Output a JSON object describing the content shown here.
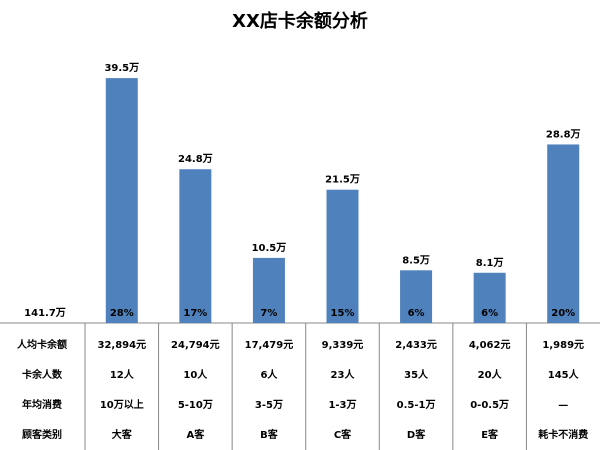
{
  "chart_data": {
    "type": "bar",
    "title": "XX店卡余额分析",
    "categories": [
      "大客",
      "A客",
      "B客",
      "C客",
      "D客",
      "E客",
      "耗卡不消费"
    ],
    "values": [
      39.5,
      24.8,
      10.5,
      21.5,
      8.5,
      8.1,
      28.8
    ],
    "value_labels": [
      "39.5万",
      "24.8万",
      "10.5万",
      "21.5万",
      "8.5万",
      "8.1万",
      "28.8万"
    ],
    "color": "#4f81bd",
    "shares": {
      "values": [
        28,
        17,
        7,
        15,
        6,
        6,
        20
      ],
      "value_labels": [
        "28%",
        "17%",
        "7%",
        "15%",
        "6%",
        "6%",
        "20%"
      ]
    },
    "total": {
      "value": 141.7,
      "label": "141.7万"
    },
    "table": {
      "rows": [
        {
          "label": "人均卡余额",
          "cells": [
            "32,894元",
            "24,794元",
            "17,479元",
            "9,339元",
            "2,433元",
            "4,062元",
            "1,989元"
          ]
        },
        {
          "label": "卡余人数",
          "cells": [
            "12人",
            "10人",
            "6人",
            "23人",
            "35人",
            "20人",
            "145人"
          ]
        },
        {
          "label": "年均消费",
          "cells": [
            "10万以上",
            "5-10万",
            "3-5万",
            "1-3万",
            "0.5-1万",
            "0-0.5万",
            "—"
          ]
        },
        {
          "label": "顾客类别",
          "cells": [
            "大客",
            "A客",
            "B客",
            "C客",
            "D客",
            "E客",
            "耗卡不消费"
          ]
        }
      ]
    }
  }
}
